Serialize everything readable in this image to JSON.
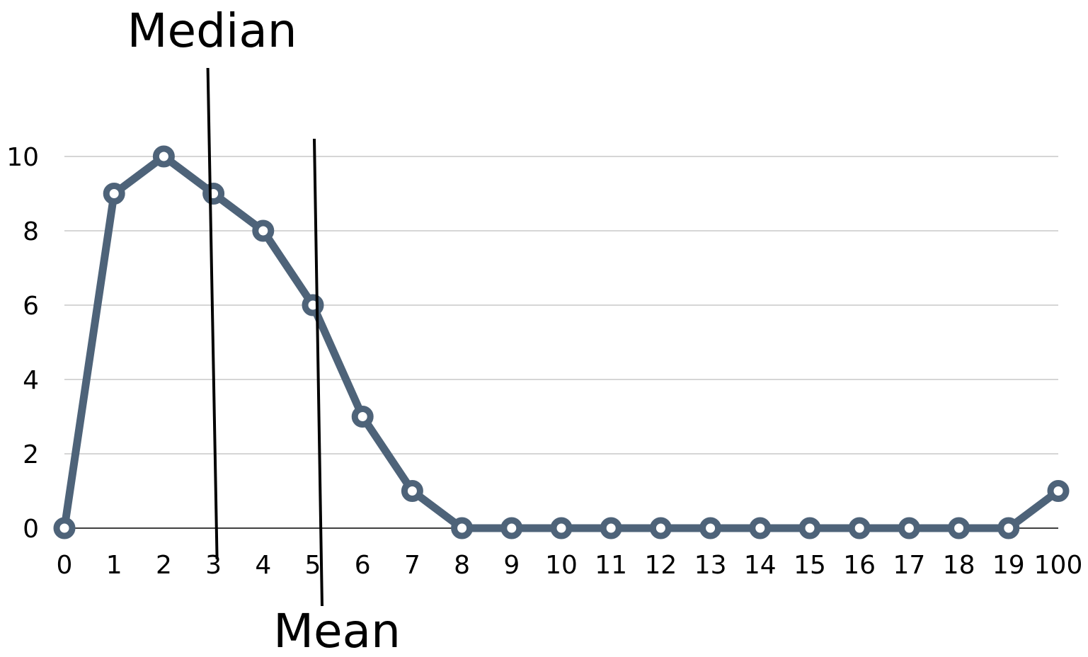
{
  "chart_data": {
    "type": "line",
    "categories": [
      "0",
      "1",
      "2",
      "3",
      "4",
      "5",
      "6",
      "7",
      "8",
      "9",
      "10",
      "11",
      "12",
      "13",
      "14",
      "15",
      "16",
      "17",
      "18",
      "19",
      "100"
    ],
    "series": [
      {
        "values": [
          0,
          9,
          10,
          9,
          8,
          6,
          3,
          1,
          0,
          0,
          0,
          0,
          0,
          0,
          0,
          0,
          0,
          0,
          0,
          0,
          1
        ]
      }
    ],
    "y_ticks": [
      "0",
      "2",
      "4",
      "6",
      "8",
      "10"
    ],
    "ylim": [
      0,
      10
    ],
    "grid": true,
    "legend": "none",
    "annotations": [
      {
        "label": "Median",
        "x_category": "3",
        "label_position": "top"
      },
      {
        "label": "Mean",
        "x_category": "5",
        "label_position": "bottom"
      }
    ],
    "colors": {
      "line": "#4e6379",
      "marker_fill": "#ffffff",
      "gridline": "#c8c8c8",
      "text": "#000000"
    }
  }
}
